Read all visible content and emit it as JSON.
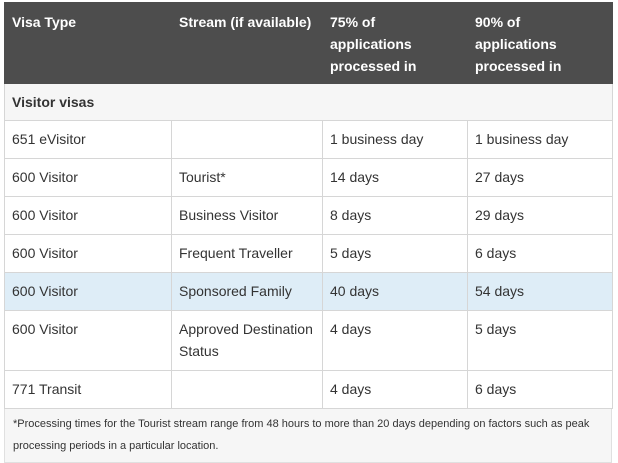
{
  "table": {
    "headers": {
      "visa_type": "Visa Type",
      "stream": "Stream (if available)",
      "p75": "75% of applications processed in",
      "p90": "90% of applications processed in"
    },
    "section_label": "Visitor visas",
    "rows": [
      {
        "visa": "651 eVisitor",
        "stream": "",
        "p75": "1 business day",
        "p90": "1 business day"
      },
      {
        "visa": "600 Visitor",
        "stream": "Tourist*",
        "p75": "14 days",
        "p90": "27 days"
      },
      {
        "visa": "600 Visitor",
        "stream": "Business Visitor",
        "p75": "8 days",
        "p90": "29 days"
      },
      {
        "visa": "600 Visitor",
        "stream": "Frequent Traveller",
        "p75": "5 days",
        "p90": "6 days"
      },
      {
        "visa": "600 Visitor",
        "stream": "Sponsored Family",
        "p75": "40 days",
        "p90": "54 days"
      },
      {
        "visa": "600 Visitor",
        "stream": "Approved Destination Status",
        "p75": "4 days",
        "p90": "5 days"
      },
      {
        "visa": "771 Transit",
        "stream": "",
        "p75": "4 days",
        "p90": "6 days"
      }
    ],
    "highlight_color": "#deedf7",
    "header_color": "#4d4d4d"
  },
  "footnote": "*Processing times for the Tourist stream range from 48 hours to more than 20 days depending on factors such as peak processing periods in a particular location."
}
